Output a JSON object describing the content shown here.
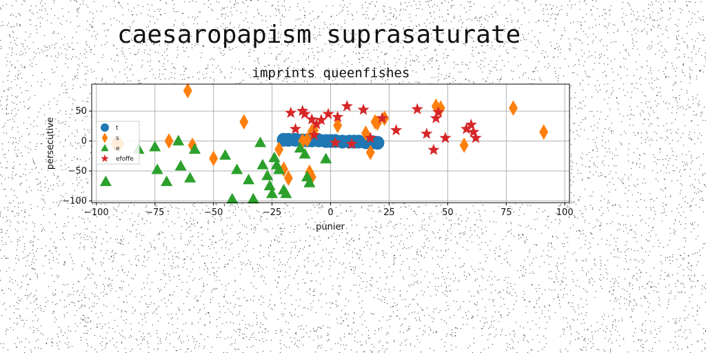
{
  "suptitle": "caesaropapism suprasaturate",
  "chart_data": {
    "type": "scatter",
    "title": "imprints queenfishes",
    "xlabel": "punier",
    "ylabel": "persecutive",
    "xlim": [
      -102,
      102
    ],
    "ylim": [
      -103,
      95
    ],
    "xticks": [
      -100,
      -75,
      -50,
      -25,
      0,
      25,
      50,
      75,
      100
    ],
    "yticks": [
      -100,
      -50,
      0,
      50
    ],
    "grid": true,
    "legend_position": "center-left",
    "series": [
      {
        "name": "t",
        "marker": "circle",
        "color": "#1f77b4",
        "points": [
          [
            -20,
            2
          ],
          [
            -18,
            2
          ],
          [
            -15,
            2
          ],
          [
            -12,
            1
          ],
          [
            -10,
            1
          ],
          [
            -8,
            1
          ],
          [
            -5,
            1
          ],
          [
            -2,
            0
          ],
          [
            0,
            0
          ],
          [
            2,
            0
          ],
          [
            5,
            -1
          ],
          [
            8,
            -1
          ],
          [
            10,
            -1
          ],
          [
            12,
            -1
          ],
          [
            15,
            -2
          ],
          [
            18,
            -2
          ],
          [
            20,
            -3
          ]
        ]
      },
      {
        "name": "s",
        "marker": "diamond",
        "color": "#ff7f0e",
        "points": [
          [
            -90,
            -5
          ],
          [
            -92,
            -5
          ],
          [
            -69,
            0
          ],
          [
            -61,
            84
          ],
          [
            -59,
            -7
          ],
          [
            -50,
            -29
          ],
          [
            -37,
            32
          ],
          [
            -22,
            -14
          ],
          [
            -20,
            -47
          ],
          [
            -18,
            -62
          ],
          [
            -12,
            0
          ],
          [
            -10,
            2
          ],
          [
            -9,
            -52
          ],
          [
            -8,
            -60
          ],
          [
            -8,
            16
          ],
          [
            -7,
            18
          ],
          [
            3,
            26
          ],
          [
            15,
            13
          ],
          [
            17,
            -19
          ],
          [
            19,
            32
          ],
          [
            20,
            30
          ],
          [
            23,
            38
          ],
          [
            45,
            58
          ],
          [
            47,
            55
          ],
          [
            57,
            -7
          ],
          [
            78,
            55
          ],
          [
            91,
            15
          ]
        ]
      },
      {
        "name": "e",
        "marker": "triangle",
        "color": "#2ca02c",
        "points": [
          [
            -96,
            -68
          ],
          [
            -82,
            -14
          ],
          [
            -75,
            -10
          ],
          [
            -74,
            -48
          ],
          [
            -70,
            -68
          ],
          [
            -65,
            0
          ],
          [
            -64,
            -42
          ],
          [
            -60,
            -62
          ],
          [
            -58,
            -14
          ],
          [
            -45,
            -24
          ],
          [
            -42,
            -97
          ],
          [
            -40,
            -48
          ],
          [
            -35,
            -65
          ],
          [
            -33,
            -97
          ],
          [
            -30,
            -3
          ],
          [
            -29,
            -40
          ],
          [
            -27,
            -58
          ],
          [
            -26,
            -75
          ],
          [
            -25,
            -88
          ],
          [
            -24,
            -28
          ],
          [
            -23,
            -40
          ],
          [
            -22,
            -48
          ],
          [
            -20,
            -82
          ],
          [
            -19,
            -88
          ],
          [
            -13,
            -12
          ],
          [
            -11,
            -22
          ],
          [
            -10,
            -60
          ],
          [
            -9,
            -70
          ],
          [
            -2,
            -30
          ]
        ]
      },
      {
        "name": "efoffe",
        "marker": "star",
        "color": "#d62728",
        "points": [
          [
            -17,
            47
          ],
          [
            -15,
            20
          ],
          [
            -12,
            50
          ],
          [
            -11,
            45
          ],
          [
            -8,
            36
          ],
          [
            -7,
            10
          ],
          [
            -6,
            28
          ],
          [
            -4,
            35
          ],
          [
            -1,
            45
          ],
          [
            2,
            -3
          ],
          [
            3,
            40
          ],
          [
            7,
            58
          ],
          [
            9,
            -5
          ],
          [
            14,
            52
          ],
          [
            17,
            5
          ],
          [
            22,
            38
          ],
          [
            28,
            18
          ],
          [
            37,
            53
          ],
          [
            41,
            12
          ],
          [
            44,
            -15
          ],
          [
            45,
            38
          ],
          [
            46,
            48
          ],
          [
            49,
            5
          ],
          [
            58,
            20
          ],
          [
            60,
            27
          ],
          [
            61,
            15
          ],
          [
            62,
            5
          ]
        ]
      }
    ]
  }
}
